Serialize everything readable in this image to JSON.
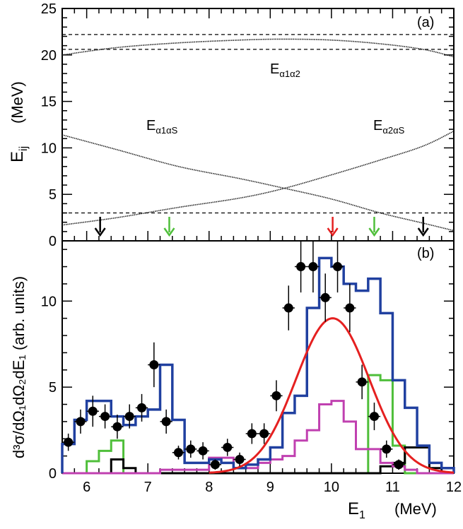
{
  "chart_data": [
    {
      "type": "line",
      "panel": "(a)",
      "ylabel": {
        "main": "E",
        "sub": "ij",
        "unit": "(MeV)"
      },
      "xlim": [
        5.6,
        12.0
      ],
      "ylim": [
        0,
        25
      ],
      "yticks": [
        0,
        5,
        10,
        15,
        20,
        25
      ],
      "grid": false,
      "dashed_lines": [
        22.2,
        20.6,
        3.0
      ],
      "curves": [
        {
          "label_main": "E",
          "label_sub": "α1α2",
          "x": [
            5.6,
            6.5,
            7.5,
            8.5,
            9.2,
            10.0,
            10.8,
            11.5,
            12.0
          ],
          "y": [
            20.0,
            20.8,
            21.3,
            21.6,
            21.7,
            21.6,
            21.2,
            20.6,
            19.8
          ]
        },
        {
          "label_main": "E",
          "label_sub": "α1αS",
          "x": [
            5.6,
            6.5,
            7.5,
            8.5,
            9.2,
            10.0,
            10.8,
            11.5,
            12.0
          ],
          "y": [
            11.4,
            9.8,
            8.0,
            6.7,
            5.7,
            4.5,
            3.0,
            1.9,
            1.1
          ]
        },
        {
          "label_main": "E",
          "label_sub": "α2αS",
          "x": [
            5.6,
            6.5,
            7.5,
            8.5,
            9.2,
            10.0,
            10.8,
            11.5,
            12.0
          ],
          "y": [
            1.7,
            2.5,
            3.6,
            4.6,
            5.6,
            7.1,
            8.7,
            10.2,
            11.8
          ]
        }
      ],
      "arrows": [
        {
          "x": 6.22,
          "color": "#000000"
        },
        {
          "x": 7.35,
          "color": "#4fbf3a"
        },
        {
          "x": 10.02,
          "color": "#e52020"
        },
        {
          "x": 10.7,
          "color": "#4fbf3a"
        },
        {
          "x": 11.5,
          "color": "#000000"
        }
      ]
    },
    {
      "type": "histogram",
      "panel": "(b)",
      "ylabel": "d³σ/dΩ₁dΩ₂dE₁ (arb. units)",
      "xlabel": {
        "main": "E",
        "sub": "1",
        "unit": "(MeV)"
      },
      "xlim": [
        5.6,
        12.0
      ],
      "ylim": [
        0,
        13.5
      ],
      "xticks": [
        6,
        7,
        8,
        9,
        10,
        11,
        12
      ],
      "yticks": [
        0,
        5,
        10
      ],
      "grid": false,
      "bin_edges": [
        5.6,
        5.8,
        6.0,
        6.2,
        6.4,
        6.6,
        6.8,
        7.0,
        7.2,
        7.4,
        7.6,
        7.8,
        8.0,
        8.2,
        8.4,
        8.6,
        8.8,
        9.0,
        9.2,
        9.4,
        9.6,
        9.8,
        10.0,
        10.2,
        10.4,
        10.6,
        10.8,
        11.0,
        11.2,
        11.4,
        11.6,
        11.8,
        12.0
      ],
      "series": [
        {
          "color": "#2040a0",
          "values": [
            1.7,
            3.1,
            4.2,
            4.2,
            3.3,
            2.8,
            3.3,
            3.7,
            6.3,
            3.1,
            0.6,
            0.6,
            0.8,
            0.6,
            0.3,
            0.5,
            0.8,
            1.5,
            3.5,
            4.5,
            9.6,
            12.5,
            12.0,
            11.0,
            10.6,
            11.3,
            9.3,
            5.4,
            3.8,
            1.6,
            0.6,
            0.3
          ]
        },
        {
          "color": "#4fbf3a",
          "values": [
            0,
            0,
            0.7,
            1.3,
            1.9,
            0,
            0,
            0,
            0,
            0,
            0,
            0,
            0,
            0,
            0,
            0,
            0,
            0,
            0,
            0,
            0,
            0,
            0,
            0,
            0,
            5.7,
            5.4,
            1.6,
            0,
            0,
            0,
            0
          ]
        },
        {
          "color": "#000000",
          "values": [
            0,
            0,
            0,
            0,
            0.8,
            0.3,
            0,
            0,
            0,
            0,
            0,
            0,
            0,
            0,
            0,
            0,
            0,
            0,
            0,
            0,
            0,
            0,
            0,
            0,
            0,
            0,
            0.4,
            0.6,
            1.5,
            1.5,
            0.3,
            0
          ]
        },
        {
          "color": "#c040b0",
          "values": [
            0,
            0,
            0,
            0,
            0,
            0,
            0,
            0,
            0.2,
            0.2,
            0.2,
            0.2,
            0.9,
            0.9,
            0.3,
            0.3,
            0.6,
            0.8,
            1.0,
            1.9,
            2.5,
            4.0,
            4.2,
            3.0,
            1.4,
            1.4,
            0.6,
            0.4,
            0.2,
            0,
            0,
            0
          ]
        }
      ],
      "gaussian": {
        "color": "#e52020",
        "mean": 10.02,
        "sigma": 0.6,
        "amplitude": 9.0
      },
      "points": {
        "x": [
          5.7,
          5.9,
          6.1,
          6.3,
          6.5,
          6.7,
          6.9,
          7.1,
          7.3,
          7.5,
          7.7,
          7.9,
          8.1,
          8.3,
          8.5,
          8.7,
          8.9,
          9.1,
          9.3,
          9.5,
          9.7,
          9.9,
          10.1,
          10.3,
          10.5,
          10.7,
          10.9,
          11.1,
          11.3,
          11.5,
          11.7
        ],
        "y": [
          1.8,
          3.0,
          3.6,
          3.3,
          2.7,
          3.3,
          3.8,
          6.3,
          3.0,
          1.2,
          1.4,
          1.3,
          0.5,
          1.5,
          0.8,
          2.3,
          2.3,
          4.5,
          9.6,
          12.0,
          12.0,
          10.2,
          12.0,
          9.6,
          5.3,
          3.3,
          1.4,
          0.5,
          0,
          0,
          0
        ],
        "yerr": [
          0.5,
          0.7,
          0.9,
          0.7,
          0.7,
          0.7,
          0.8,
          1.3,
          0.7,
          0.4,
          0.5,
          0.5,
          0.3,
          0.5,
          0.4,
          0.6,
          0.6,
          0.9,
          1.3,
          1.5,
          1.5,
          1.4,
          1.5,
          1.4,
          1.0,
          0.8,
          0.5,
          0.3,
          0,
          0,
          0
        ]
      }
    }
  ]
}
